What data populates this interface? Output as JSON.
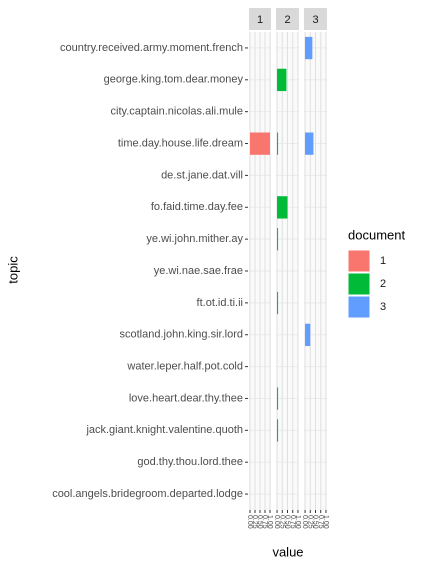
{
  "chart_data": {
    "type": "bar",
    "orientation": "horizontal",
    "facet": true,
    "y_label": "topic",
    "x_label": "value",
    "legend_title": "document",
    "legend_position": "right",
    "categories": [
      "country.received.army.moment.french",
      "george.king.tom.dear.money",
      "city.captain.nicolas.ali.mule",
      "time.day.house.life.dream",
      "de.st.jane.dat.vill",
      "fo.faid.time.day.fee",
      "ye.wi.john.mither.ay",
      "ye.wi.nae.sae.frae",
      "ft.ot.id.ti.ii",
      "scotland.john.king.sir.lord",
      "water.leper.half.pot.cold",
      "love.heart.dear.thy.thee",
      "jack.giant.knight.valentine.quoth",
      "god.thy.thou.lord.thee",
      "cool.angels.bridegroom.departed.lodge"
    ],
    "series": [
      {
        "name": "1",
        "color": "#F8766D",
        "values": [
          0,
          0,
          0,
          1,
          0,
          0,
          0,
          0,
          0,
          0,
          0,
          0,
          0,
          0,
          0
        ]
      },
      {
        "name": "2",
        "color": "#00BA38",
        "values": [
          0,
          0.45,
          0,
          0.05,
          0,
          0.5,
          0.05,
          0,
          0.05,
          0,
          0,
          0.05,
          0.05,
          0,
          0
        ]
      },
      {
        "name": "3",
        "color": "#619CFF",
        "values": [
          0.35,
          0,
          0,
          0.4,
          0,
          0,
          0,
          0,
          0,
          0.25,
          0,
          0,
          0,
          0,
          0
        ]
      }
    ],
    "xlim": [
      -0.05,
      1.05
    ],
    "xticks": [
      {
        "value": 0,
        "label": "0.00"
      },
      {
        "value": 0.25,
        "label": "0.25"
      },
      {
        "value": 0.5,
        "label": "0.50"
      },
      {
        "value": 0.75,
        "label": "0.75"
      },
      {
        "value": 1,
        "label": "1.00"
      }
    ],
    "grid": true
  }
}
